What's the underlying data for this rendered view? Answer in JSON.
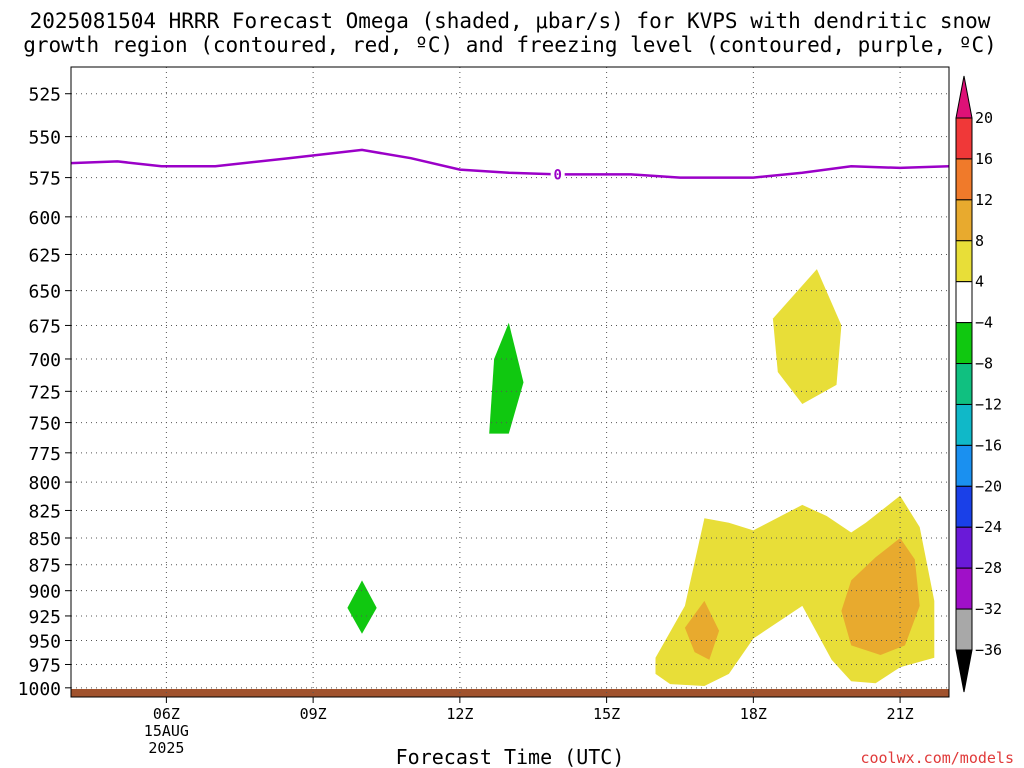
{
  "title": {
    "line1": "2025081504 HRRR Forecast Omega (shaded, μbar/s) for KVPS with dendritic snow",
    "line2": "growth region (contoured, red, ºC) and freezing level (contoured, purple, ºC)"
  },
  "credit": "coolwx.com/models",
  "chart_data": {
    "type": "time-height contour",
    "xlabel": "Forecast Time (UTC)",
    "x_ticks": [
      {
        "label": "06Z",
        "sub": [
          "15AUG",
          "2025"
        ]
      },
      {
        "label": "09Z",
        "sub": []
      },
      {
        "label": "12Z",
        "sub": []
      },
      {
        "label": "15Z",
        "sub": []
      },
      {
        "label": "18Z",
        "sub": []
      },
      {
        "label": "21Z",
        "sub": []
      }
    ],
    "x_tick_hours": [
      6,
      9,
      12,
      15,
      18,
      21
    ],
    "xlim_hours": [
      4.05,
      22.0
    ],
    "y_ticks": [
      525,
      550,
      575,
      600,
      625,
      650,
      675,
      700,
      725,
      750,
      775,
      800,
      825,
      850,
      875,
      900,
      925,
      950,
      975,
      1000
    ],
    "ylim_hPa": [
      510,
      1010
    ],
    "y_scale": "log",
    "grid": true,
    "colorbar": {
      "levels": [
        "20",
        "16",
        "12",
        "8",
        "4",
        "−4",
        "−8",
        "−12",
        "−16",
        "−20",
        "−24",
        "−28",
        "−32",
        "−36"
      ],
      "top_arrow_color": "#dd1177",
      "bottom_arrow_color": "#000000",
      "colors": [
        "#f03838",
        "#f07a2a",
        "#e8aa2e",
        "#e8de38",
        "#ffffff",
        "#10c810",
        "#10c080",
        "#10b8c8",
        "#1a90f0",
        "#1a40e8",
        "#6a1ad8",
        "#a010c8",
        "#a8a8a8"
      ]
    },
    "freezing_level": {
      "label": "0",
      "color": "#9b00c8",
      "label_point": {
        "hour": 14.0,
        "hPa": 573
      },
      "points": [
        {
          "hour": 4.05,
          "hPa": 566
        },
        {
          "hour": 5.0,
          "hPa": 565
        },
        {
          "hour": 5.9,
          "hPa": 568
        },
        {
          "hour": 7.0,
          "hPa": 568
        },
        {
          "hour": 8.5,
          "hPa": 563
        },
        {
          "hour": 10.0,
          "hPa": 558
        },
        {
          "hour": 11.0,
          "hPa": 563
        },
        {
          "hour": 12.0,
          "hPa": 570
        },
        {
          "hour": 13.0,
          "hPa": 572
        },
        {
          "hour": 14.0,
          "hPa": 573
        },
        {
          "hour": 15.5,
          "hPa": 573
        },
        {
          "hour": 16.5,
          "hPa": 575
        },
        {
          "hour": 18.0,
          "hPa": 575
        },
        {
          "hour": 19.0,
          "hPa": 572
        },
        {
          "hour": 20.0,
          "hPa": 568
        },
        {
          "hour": 21.0,
          "hPa": 569
        },
        {
          "hour": 22.0,
          "hPa": 568
        }
      ]
    },
    "omega_regions": [
      {
        "name": "rising-region-left",
        "bin": "-8 to -4",
        "color": "#10c810",
        "points": [
          {
            "hour": 10.0,
            "hPa": 890
          },
          {
            "hour": 10.3,
            "hPa": 917
          },
          {
            "hour": 10.0,
            "hPa": 943
          },
          {
            "hour": 9.7,
            "hPa": 917
          }
        ]
      },
      {
        "name": "rising-region-center",
        "bin": "-8 to -4",
        "color": "#10c810",
        "points": [
          {
            "hour": 13.0,
            "hPa": 673
          },
          {
            "hour": 13.3,
            "hPa": 718
          },
          {
            "hour": 13.0,
            "hPa": 759
          },
          {
            "hour": 12.6,
            "hPa": 759
          },
          {
            "hour": 12.7,
            "hPa": 700
          }
        ]
      },
      {
        "name": "sinking-region-upper",
        "bin": "4 to 8",
        "color": "#e8de38",
        "points": [
          {
            "hour": 19.3,
            "hPa": 635
          },
          {
            "hour": 19.8,
            "hPa": 675
          },
          {
            "hour": 19.7,
            "hPa": 720
          },
          {
            "hour": 19.0,
            "hPa": 735
          },
          {
            "hour": 18.5,
            "hPa": 710
          },
          {
            "hour": 18.4,
            "hPa": 670
          }
        ]
      },
      {
        "name": "sinking-region-lower",
        "bin": "4 to 8",
        "color": "#e8de38",
        "points": [
          {
            "hour": 16.0,
            "hPa": 968
          },
          {
            "hour": 16.6,
            "hPa": 915
          },
          {
            "hour": 17.0,
            "hPa": 832
          },
          {
            "hour": 17.5,
            "hPa": 836
          },
          {
            "hour": 18.0,
            "hPa": 843
          },
          {
            "hour": 19.0,
            "hPa": 820
          },
          {
            "hour": 19.5,
            "hPa": 830
          },
          {
            "hour": 20.0,
            "hPa": 845
          },
          {
            "hour": 20.3,
            "hPa": 836
          },
          {
            "hour": 21.0,
            "hPa": 812
          },
          {
            "hour": 21.4,
            "hPa": 840
          },
          {
            "hour": 21.7,
            "hPa": 910
          },
          {
            "hour": 21.7,
            "hPa": 968
          },
          {
            "hour": 21.0,
            "hPa": 978
          },
          {
            "hour": 20.5,
            "hPa": 995
          },
          {
            "hour": 20.0,
            "hPa": 993
          },
          {
            "hour": 19.6,
            "hPa": 970
          },
          {
            "hour": 19.0,
            "hPa": 915
          },
          {
            "hour": 18.0,
            "hPa": 948
          },
          {
            "hour": 17.5,
            "hPa": 985
          },
          {
            "hour": 17.0,
            "hPa": 998
          },
          {
            "hour": 16.3,
            "hPa": 996
          },
          {
            "hour": 16.0,
            "hPa": 985
          }
        ]
      },
      {
        "name": "sinking-core-center",
        "bin": "8 to 12",
        "color": "#e8aa2e",
        "points": [
          {
            "hour": 17.0,
            "hPa": 910
          },
          {
            "hour": 17.3,
            "hPa": 940
          },
          {
            "hour": 17.1,
            "hPa": 970
          },
          {
            "hour": 16.8,
            "hPa": 962
          },
          {
            "hour": 16.6,
            "hPa": 937
          }
        ]
      },
      {
        "name": "sinking-core-right",
        "bin": "8 to 12",
        "color": "#e8aa2e",
        "points": [
          {
            "hour": 21.0,
            "hPa": 850
          },
          {
            "hour": 21.3,
            "hPa": 870
          },
          {
            "hour": 21.4,
            "hPa": 915
          },
          {
            "hour": 21.1,
            "hPa": 955
          },
          {
            "hour": 20.6,
            "hPa": 965
          },
          {
            "hour": 20.0,
            "hPa": 955
          },
          {
            "hour": 19.8,
            "hPa": 920
          },
          {
            "hour": 20.0,
            "hPa": 890
          },
          {
            "hour": 20.5,
            "hPa": 868
          }
        ]
      }
    ],
    "surface": {
      "color": "#a0522d",
      "hPa": 1013
    }
  }
}
